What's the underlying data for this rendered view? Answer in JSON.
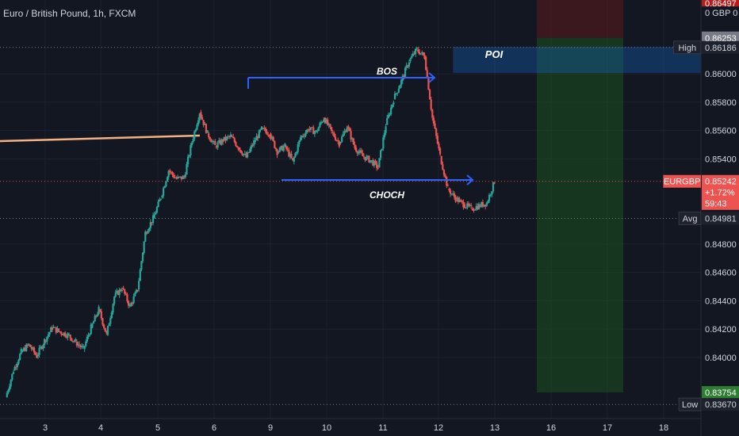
{
  "header": {
    "title": "Euro / British Pound, 1h, FXCM"
  },
  "colors": {
    "background": "#131722",
    "up": "#26a69a",
    "down": "#ef5350",
    "grid": "#1e2230",
    "text": "#d1d4dc",
    "annotation_blue": "#2962ff",
    "trendline": "#f4b183",
    "zone_profit": "#1b5e20",
    "zone_loss": "#5d1a1a"
  },
  "chart_data": {
    "type": "candlestick",
    "symbol": "EURGBP",
    "currency_label": "GBP",
    "y_axis": {
      "min": 0.8357,
      "max": 0.8652,
      "ticks": [
        "0.86000",
        "0.85800",
        "0.85600",
        "0.85400",
        "0.84800",
        "0.84600",
        "0.84400",
        "0.84200",
        "0.84000"
      ]
    },
    "x_axis": {
      "ticks": [
        "3",
        "4",
        "5",
        "6",
        "9",
        "10",
        "11",
        "12",
        "13",
        "16",
        "17",
        "18"
      ]
    },
    "price_labels": [
      {
        "text": "0.86497",
        "value": 0.86497,
        "bg": "#b71c1c",
        "fg": "#ffffff"
      },
      {
        "text": "0 GBP 0",
        "value": 0.8643,
        "bg": "#131722",
        "fg": "#d1d4dc"
      },
      {
        "text": "0.86253",
        "value": 0.86253,
        "bg": "#787b86",
        "fg": "#ffffff"
      },
      {
        "text": "0.86186",
        "tag": "High",
        "value": 0.86186,
        "bg": "#1e222d",
        "fg": "#d1d4dc"
      },
      {
        "text": "0.85242",
        "tag": "EURGBP",
        "value": 0.85242,
        "bg": "#ef5350",
        "fg": "#ffffff",
        "extra": [
          "+1.72%",
          "59:43"
        ]
      },
      {
        "text": "0.84981",
        "tag": "Avg",
        "value": 0.84981,
        "bg": "#1e222d",
        "fg": "#d1d4dc"
      },
      {
        "text": "0.83754",
        "value": 0.83754,
        "bg": "#2e7d32",
        "fg": "#ffffff"
      },
      {
        "text": "0.83670",
        "tag": "Low",
        "value": 0.8367,
        "bg": "#1e222d",
        "fg": "#d1d4dc"
      }
    ],
    "annotations": {
      "bos": "BOS",
      "choch": "CHOCH",
      "poi": "POI"
    },
    "summary_path": [
      [
        0,
        0.8372
      ],
      [
        0.04,
        0.8391
      ],
      [
        0.08,
        0.8404
      ],
      [
        0.12,
        0.8409
      ],
      [
        0.16,
        0.8401
      ],
      [
        0.2,
        0.8412
      ],
      [
        0.24,
        0.8421
      ],
      [
        0.28,
        0.8418
      ],
      [
        0.32,
        0.8416
      ],
      [
        0.36,
        0.8411
      ],
      [
        0.4,
        0.8406
      ],
      [
        0.44,
        0.8421
      ],
      [
        0.48,
        0.8434
      ],
      [
        0.52,
        0.8416
      ],
      [
        0.56,
        0.8443
      ],
      [
        0.6,
        0.8449
      ],
      [
        0.64,
        0.8436
      ],
      [
        0.68,
        0.8448
      ],
      [
        0.72,
        0.8488
      ],
      [
        0.76,
        0.8498
      ],
      [
        0.8,
        0.8513
      ],
      [
        0.84,
        0.8532
      ],
      [
        0.88,
        0.8526
      ],
      [
        0.92,
        0.8527
      ],
      [
        0.96,
        0.8552
      ],
      [
        1.0,
        0.8573
      ],
      [
        1.04,
        0.8558
      ],
      [
        1.08,
        0.8549
      ],
      [
        1.12,
        0.8553
      ],
      [
        1.16,
        0.8556
      ],
      [
        1.2,
        0.8548
      ],
      [
        1.24,
        0.8541
      ],
      [
        1.28,
        0.8552
      ],
      [
        1.32,
        0.8561
      ],
      [
        1.36,
        0.8558
      ],
      [
        1.4,
        0.8545
      ],
      [
        1.44,
        0.8549
      ],
      [
        1.48,
        0.8538
      ],
      [
        1.52,
        0.8555
      ],
      [
        1.56,
        0.8561
      ],
      [
        1.6,
        0.8559
      ],
      [
        1.64,
        0.8569
      ],
      [
        1.68,
        0.8559
      ],
      [
        1.72,
        0.8551
      ],
      [
        1.76,
        0.8563
      ],
      [
        1.8,
        0.8548
      ],
      [
        1.84,
        0.8542
      ],
      [
        1.88,
        0.8539
      ],
      [
        1.92,
        0.8534
      ],
      [
        1.96,
        0.8564
      ],
      [
        2.0,
        0.8582
      ],
      [
        2.04,
        0.8595
      ],
      [
        2.08,
        0.8609
      ],
      [
        2.12,
        0.8617
      ],
      [
        2.16,
        0.8612
      ],
      [
        2.2,
        0.8569
      ],
      [
        2.24,
        0.8542
      ],
      [
        2.28,
        0.8519
      ],
      [
        2.32,
        0.8512
      ],
      [
        2.36,
        0.8508
      ],
      [
        2.4,
        0.8505
      ],
      [
        2.44,
        0.8507
      ],
      [
        2.48,
        0.8509
      ],
      [
        2.52,
        0.8524
      ]
    ]
  }
}
